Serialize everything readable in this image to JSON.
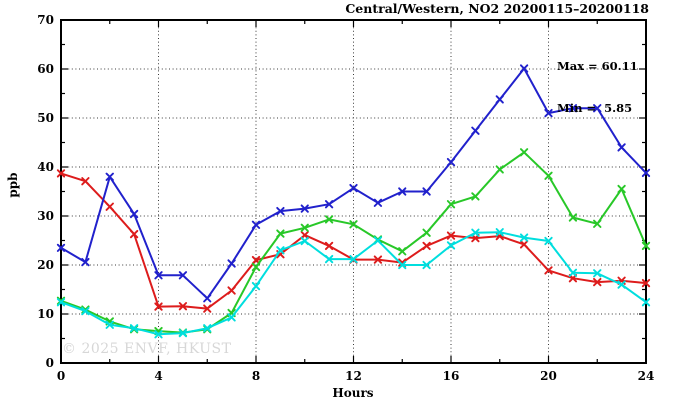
{
  "watermark": "© 2025 ENVF, HKUST",
  "chart_data": {
    "type": "line",
    "title": "Central/Western, NO2 20200115–20200118",
    "xlabel": "Hours",
    "ylabel": "ppb",
    "xlim": [
      0,
      24
    ],
    "ylim": [
      0,
      70
    ],
    "xticks": [
      0,
      4,
      8,
      12,
      16,
      20,
      24
    ],
    "xticks_minor": [
      2,
      6,
      10,
      14,
      18,
      22
    ],
    "yticks": [
      0,
      10,
      20,
      30,
      40,
      50,
      60,
      70
    ],
    "yticks_minor": [
      5,
      15,
      25,
      35,
      45,
      55,
      65
    ],
    "grid": {
      "vertical_at": [
        4,
        8,
        12,
        16,
        20
      ],
      "horizontal_at": [
        10,
        20,
        30,
        40,
        50,
        60
      ]
    },
    "legend": "none",
    "marker": "x",
    "annotations": {
      "max_label": "Max = 60.11",
      "min_label": "Min =  5.85"
    },
    "x": [
      0,
      1,
      2,
      3,
      4,
      5,
      6,
      7,
      8,
      9,
      10,
      11,
      12,
      13,
      14,
      15,
      16,
      17,
      18,
      19,
      20,
      21,
      22,
      23,
      24
    ],
    "series": [
      {
        "name": "red",
        "color": "#dd1c1c",
        "values": [
          38.7,
          37.1,
          31.9,
          26.3,
          11.5,
          11.6,
          11.1,
          14.8,
          21.0,
          22.2,
          26.1,
          23.9,
          21.1,
          21.1,
          20.5,
          23.9,
          26.0,
          25.5,
          25.9,
          24.2,
          18.9,
          17.3,
          16.5,
          16.8,
          16.3
        ]
      },
      {
        "name": "blue",
        "color": "#2121cc",
        "values": [
          23.5,
          20.6,
          38.0,
          30.4,
          17.9,
          17.9,
          13.2,
          20.3,
          28.2,
          31.0,
          31.5,
          32.4,
          35.7,
          32.7,
          35.0,
          35.0,
          41.0,
          47.4,
          53.8,
          60.11,
          51.0,
          52.0,
          52.0,
          44.0,
          38.8
        ]
      },
      {
        "name": "green",
        "color": "#28c828",
        "values": [
          12.7,
          10.9,
          8.5,
          6.9,
          6.5,
          6.2,
          6.9,
          10.2,
          19.6,
          26.4,
          27.6,
          29.3,
          28.3,
          25.2,
          22.8,
          26.6,
          32.4,
          34.0,
          39.5,
          43.0,
          38.2,
          29.7,
          28.4,
          35.5,
          23.9
        ]
      },
      {
        "name": "cyan",
        "color": "#00dede",
        "values": [
          12.4,
          10.6,
          7.8,
          7.1,
          5.85,
          6.1,
          7.1,
          9.3,
          15.7,
          23.0,
          24.9,
          21.2,
          21.2,
          25.0,
          20.0,
          20.0,
          24.0,
          26.6,
          26.7,
          25.6,
          24.9,
          18.4,
          18.3,
          16.0,
          12.4
        ]
      }
    ]
  }
}
